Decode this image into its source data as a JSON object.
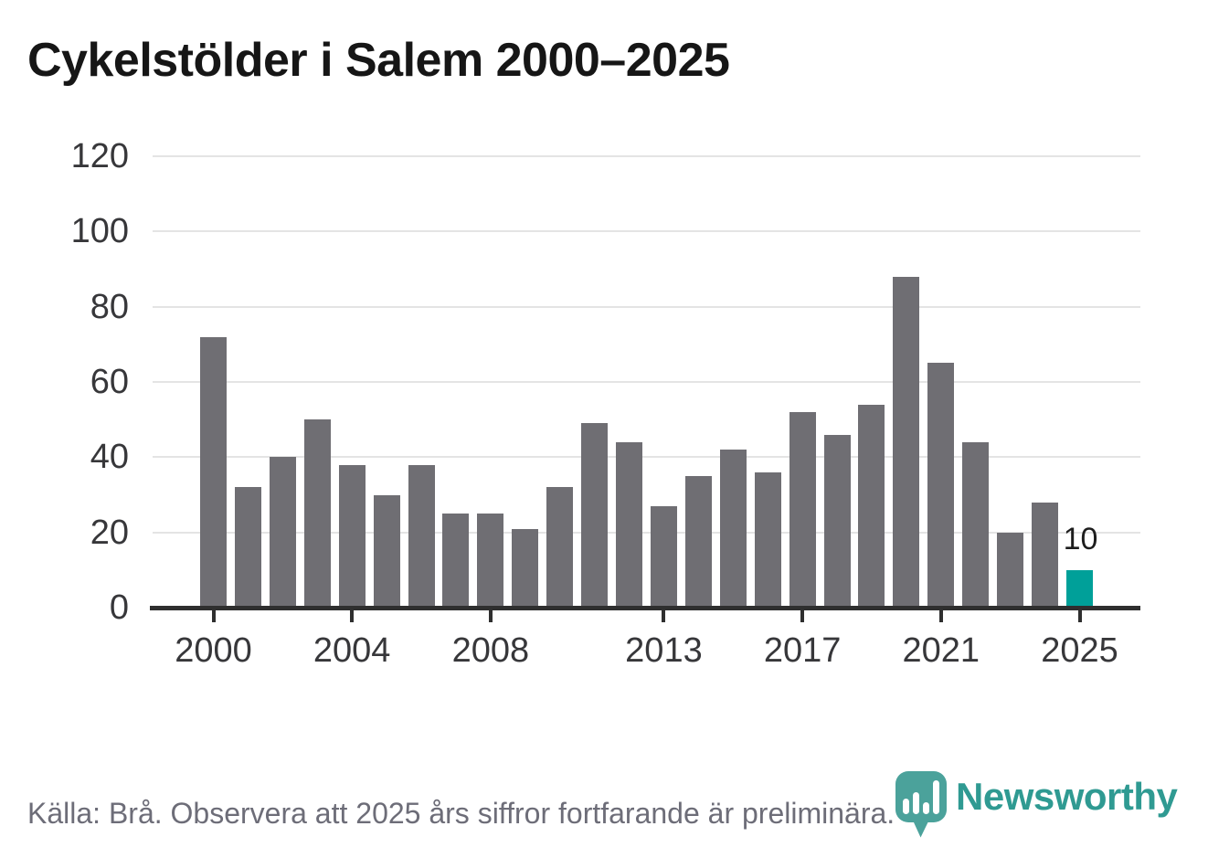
{
  "title": "Cykelstölder i Salem 2000–2025",
  "source_note": "Källa: Brå. Observera att 2025 års siffror fortfarande är preliminära.",
  "branding": {
    "name": "Newsworthy",
    "icon": "newsworthy-pin-barchart-icon",
    "icon_color": "#4ba29b",
    "wordmark_color": "#2f9a92"
  },
  "colors": {
    "bar_default": "#6f6e73",
    "bar_highlight": "#00a099",
    "gridline": "#e4e4e4",
    "axis": "#2f2f2f",
    "title_text": "#161616",
    "axis_text": "#37373a",
    "source_text": "#6d6d78",
    "data_label_text": "#1d1d1d"
  },
  "chart_data": {
    "type": "bar",
    "title": "Cykelstölder i Salem 2000–2025",
    "xlabel": "",
    "ylabel": "",
    "x": [
      2000,
      2001,
      2002,
      2003,
      2004,
      2005,
      2006,
      2007,
      2008,
      2009,
      2010,
      2011,
      2012,
      2013,
      2014,
      2015,
      2016,
      2017,
      2018,
      2019,
      2020,
      2021,
      2022,
      2023,
      2024,
      2025
    ],
    "values": [
      72,
      32,
      40,
      50,
      38,
      30,
      38,
      25,
      25,
      21,
      32,
      49,
      44,
      27,
      35,
      42,
      36,
      52,
      46,
      54,
      88,
      65,
      44,
      20,
      28,
      10
    ],
    "highlight_year": 2025,
    "highlight_value_label": "10",
    "x_tick_labels": [
      "2000",
      "2004",
      "2008",
      "2013",
      "2017",
      "2021",
      "2025"
    ],
    "y_ticks": [
      0,
      20,
      40,
      60,
      80,
      100,
      120
    ],
    "ylim": [
      0,
      120
    ],
    "grid": "horizontal",
    "legend": "none"
  }
}
